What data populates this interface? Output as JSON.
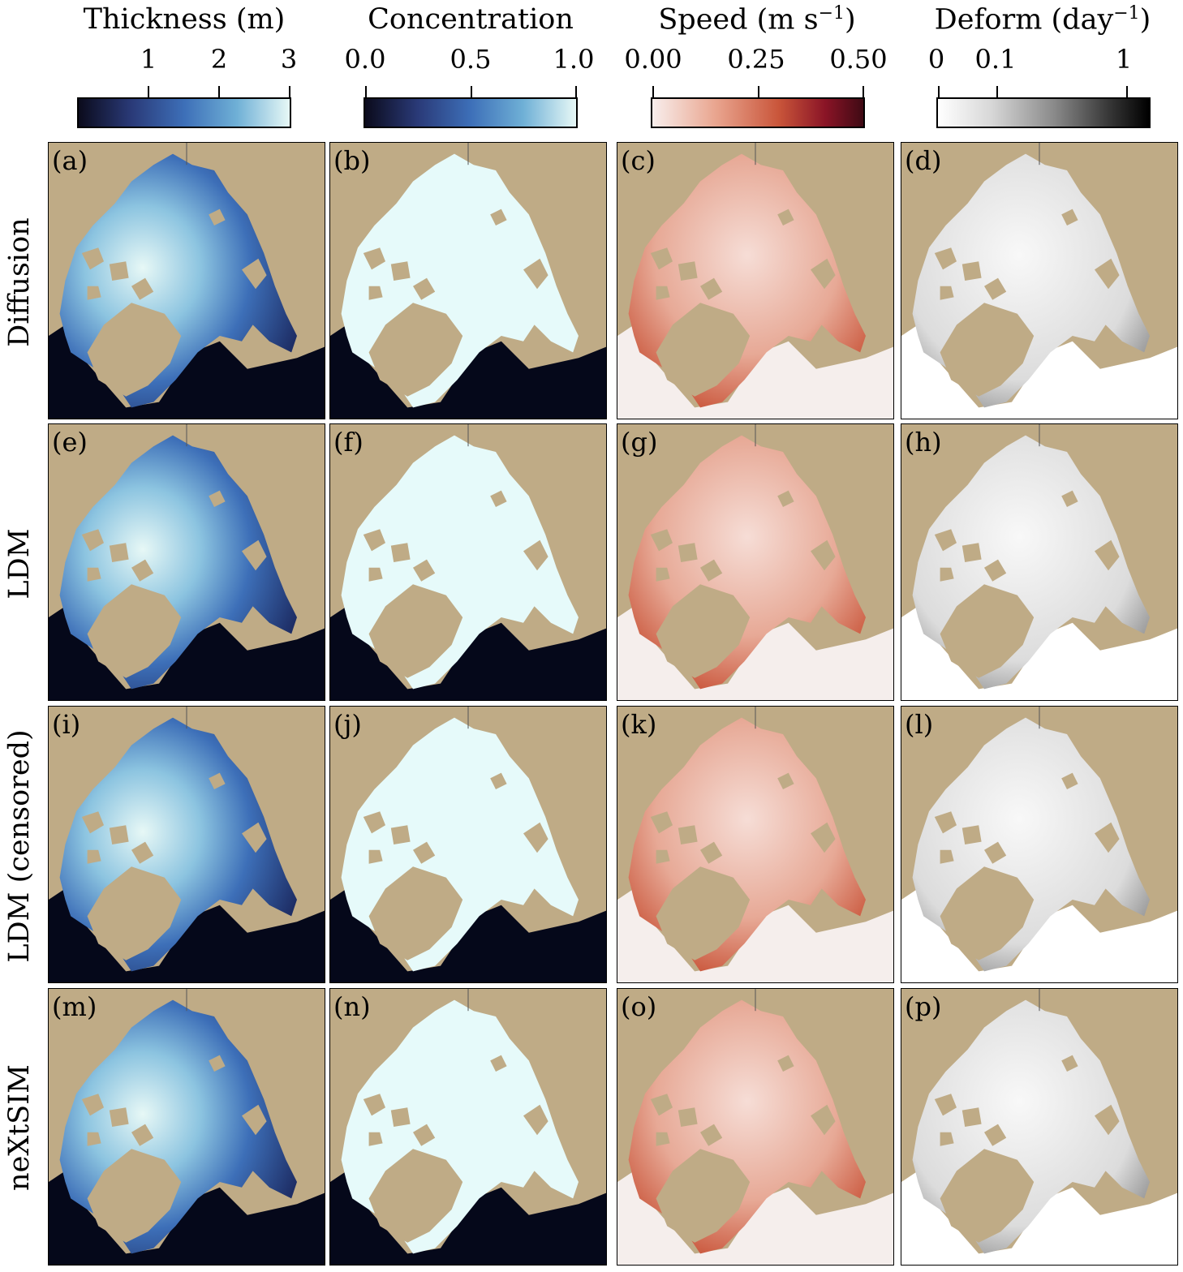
{
  "colorbars": [
    {
      "id": "thickness",
      "title": "Thickness (m)",
      "ticks": [
        "1",
        "2",
        "3"
      ],
      "tick_values": [
        1,
        2,
        3
      ],
      "range": [
        0,
        3
      ],
      "colormap": [
        "#0b0b1c",
        "#2a3a78",
        "#3d6fb8",
        "#6fb0d6",
        "#e7f8f6"
      ]
    },
    {
      "id": "concentration",
      "title": "Concentration",
      "ticks": [
        "0.0",
        "0.5",
        "1.0"
      ],
      "tick_values": [
        0,
        0.5,
        1
      ],
      "range": [
        0,
        1
      ],
      "colormap": [
        "#0b0b1c",
        "#2a3a78",
        "#3d6fb8",
        "#6fb0d6",
        "#e7f8f6"
      ]
    },
    {
      "id": "speed",
      "title_main": "Speed (m s",
      "title_sup": "−1",
      "title_end": ")",
      "ticks": [
        "0.00",
        "0.25",
        "0.50"
      ],
      "tick_values": [
        0,
        0.25,
        0.5
      ],
      "range": [
        0,
        0.5
      ],
      "colormap": [
        "#f8eeec",
        "#e9a58f",
        "#c9553a",
        "#8a1426",
        "#3f0a14"
      ]
    },
    {
      "id": "deform",
      "title_main": "Deform (day",
      "title_sup": "−1",
      "title_end": ")",
      "ticks": [
        "0",
        "0.1",
        "1"
      ],
      "tick_values": [
        0,
        0.1,
        1
      ],
      "range": [
        0,
        1.5
      ],
      "colormap": [
        "#ffffff",
        "#d8d8d8",
        "#8a8a8a",
        "#3a3a3a",
        "#000000"
      ]
    }
  ],
  "rows": [
    {
      "label": "Diffusion",
      "panels": [
        "(a)",
        "(b)",
        "(c)",
        "(d)"
      ]
    },
    {
      "label": "LDM",
      "panels": [
        "(e)",
        "(f)",
        "(g)",
        "(h)"
      ]
    },
    {
      "label": "LDM (censored)",
      "panels": [
        "(i)",
        "(j)",
        "(k)",
        "(l)"
      ]
    },
    {
      "label": "neXtSIM",
      "panels": [
        "(m)",
        "(n)",
        "(o)",
        "(p)"
      ]
    }
  ],
  "colors": {
    "land": "#bfab86",
    "open_ocean": "#05081a",
    "no_ice_speed": "#f5eeec",
    "no_ice_deform": "#ffffff"
  }
}
